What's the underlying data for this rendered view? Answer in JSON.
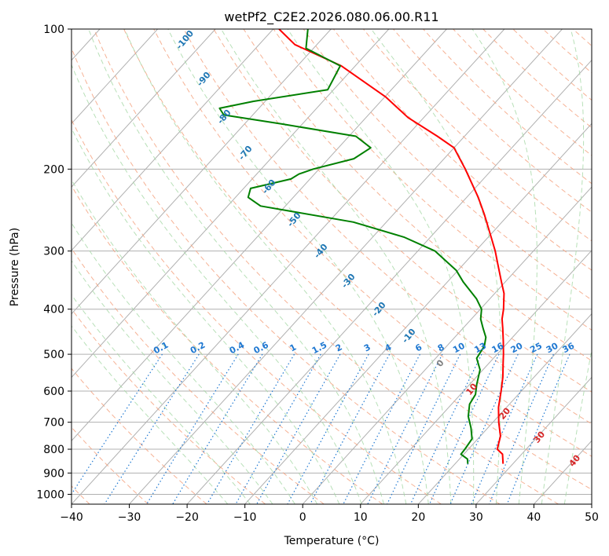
{
  "chart_data": {
    "type": "line",
    "title": "wetPf2_C2E2.2026.080.06.00.R11",
    "xlabel": "Temperature (°C)",
    "ylabel": "Pressure (hPa)",
    "xlim": [
      -40,
      50
    ],
    "ylim": [
      1050,
      100
    ],
    "y_scale": "log",
    "skew": true,
    "grid": true,
    "x_ticks": [
      -40,
      -30,
      -20,
      -10,
      0,
      10,
      20,
      30,
      40,
      50
    ],
    "y_ticks": [
      100,
      200,
      300,
      400,
      500,
      600,
      700,
      800,
      900,
      1000
    ],
    "series": [
      {
        "color": "#ff0000",
        "points": [
          {
            "p": 860,
            "t": 28.3
          },
          {
            "p": 820,
            "t": 26.7
          },
          {
            "p": 800,
            "t": 25.0
          },
          {
            "p": 750,
            "t": 23.5
          },
          {
            "p": 700,
            "t": 21.0
          },
          {
            "p": 650,
            "t": 18.6
          },
          {
            "p": 600,
            "t": 16.5
          },
          {
            "p": 560,
            "t": 14.6
          },
          {
            "p": 520,
            "t": 12.3
          },
          {
            "p": 500,
            "t": 11.1
          },
          {
            "p": 470,
            "t": 9.1
          },
          {
            "p": 440,
            "t": 6.9
          },
          {
            "p": 420,
            "t": 5.3
          },
          {
            "p": 400,
            "t": 4.0
          },
          {
            "p": 370,
            "t": 1.6
          },
          {
            "p": 350,
            "t": -0.6
          },
          {
            "p": 320,
            "t": -4.1
          },
          {
            "p": 300,
            "t": -6.6
          },
          {
            "p": 280,
            "t": -9.5
          },
          {
            "p": 250,
            "t": -14.3
          },
          {
            "p": 230,
            "t": -18.0
          },
          {
            "p": 200,
            "t": -24.7
          },
          {
            "p": 180,
            "t": -30.0
          },
          {
            "p": 170,
            "t": -34.7
          },
          {
            "p": 155,
            "t": -42.7
          },
          {
            "p": 140,
            "t": -49.8
          },
          {
            "p": 120,
            "t": -62.4
          },
          {
            "p": 108,
            "t": -73.8
          },
          {
            "p": 100,
            "t": -79.0
          }
        ]
      },
      {
        "color": "#008000",
        "points": [
          {
            "p": 860,
            "t": 22.2
          },
          {
            "p": 840,
            "t": 21.4
          },
          {
            "p": 820,
            "t": 19.5
          },
          {
            "p": 800,
            "t": 19.4
          },
          {
            "p": 760,
            "t": 19.0
          },
          {
            "p": 720,
            "t": 17.1
          },
          {
            "p": 680,
            "t": 14.8
          },
          {
            "p": 640,
            "t": 13.1
          },
          {
            "p": 610,
            "t": 12.6
          },
          {
            "p": 580,
            "t": 11.2
          },
          {
            "p": 540,
            "t": 9.5
          },
          {
            "p": 510,
            "t": 7.1
          },
          {
            "p": 480,
            "t": 6.5
          },
          {
            "p": 460,
            "t": 5.4
          },
          {
            "p": 440,
            "t": 3.5
          },
          {
            "p": 420,
            "t": 1.6
          },
          {
            "p": 400,
            "t": 0.2
          },
          {
            "p": 380,
            "t": -2.3
          },
          {
            "p": 350,
            "t": -7.2
          },
          {
            "p": 330,
            "t": -10.3
          },
          {
            "p": 300,
            "t": -17.0
          },
          {
            "p": 280,
            "t": -24.6
          },
          {
            "p": 260,
            "t": -35.7
          },
          {
            "p": 240,
            "t": -54.3
          },
          {
            "p": 230,
            "t": -57.8
          },
          {
            "p": 220,
            "t": -58.8
          },
          {
            "p": 210,
            "t": -53.3
          },
          {
            "p": 205,
            "t": -52.7
          },
          {
            "p": 200,
            "t": -51.0
          },
          {
            "p": 190,
            "t": -45.6
          },
          {
            "p": 180,
            "t": -44.4
          },
          {
            "p": 170,
            "t": -48.8
          },
          {
            "p": 160,
            "t": -63.5
          },
          {
            "p": 153,
            "t": -75.0
          },
          {
            "p": 148,
            "t": -76.8
          },
          {
            "p": 143,
            "t": -72.0
          },
          {
            "p": 135,
            "t": -61.0
          },
          {
            "p": 120,
            "t": -62.6
          },
          {
            "p": 110,
            "t": -71.3
          },
          {
            "p": 100,
            "t": -74.0
          }
        ]
      }
    ],
    "dry_adiabat_labels": [
      "-100",
      "-90",
      "-80",
      "-70",
      "-60",
      "-50",
      "-40",
      "-30",
      "-20",
      "-10",
      "0",
      "10",
      "20",
      "30",
      "40"
    ],
    "mixing_ratio_labels": [
      "0.1",
      "0.2",
      "0.4",
      "0.6",
      "1",
      "1.5",
      "2",
      "3",
      "4",
      "6",
      "8",
      "10",
      "13",
      "16",
      "20",
      "25",
      "30",
      "36"
    ],
    "colors": {
      "temperature": "#ff0000",
      "dewpoint": "#008000",
      "isotherm": "#b0b0b0",
      "dry_adiabat": "#f4a582",
      "moist_adiabat": "#a6d8a6",
      "mixing_ratio": "#1f78d1",
      "adiabat_label_cold": "#1f77b4",
      "adiabat_label_warm": "#d62728"
    }
  }
}
